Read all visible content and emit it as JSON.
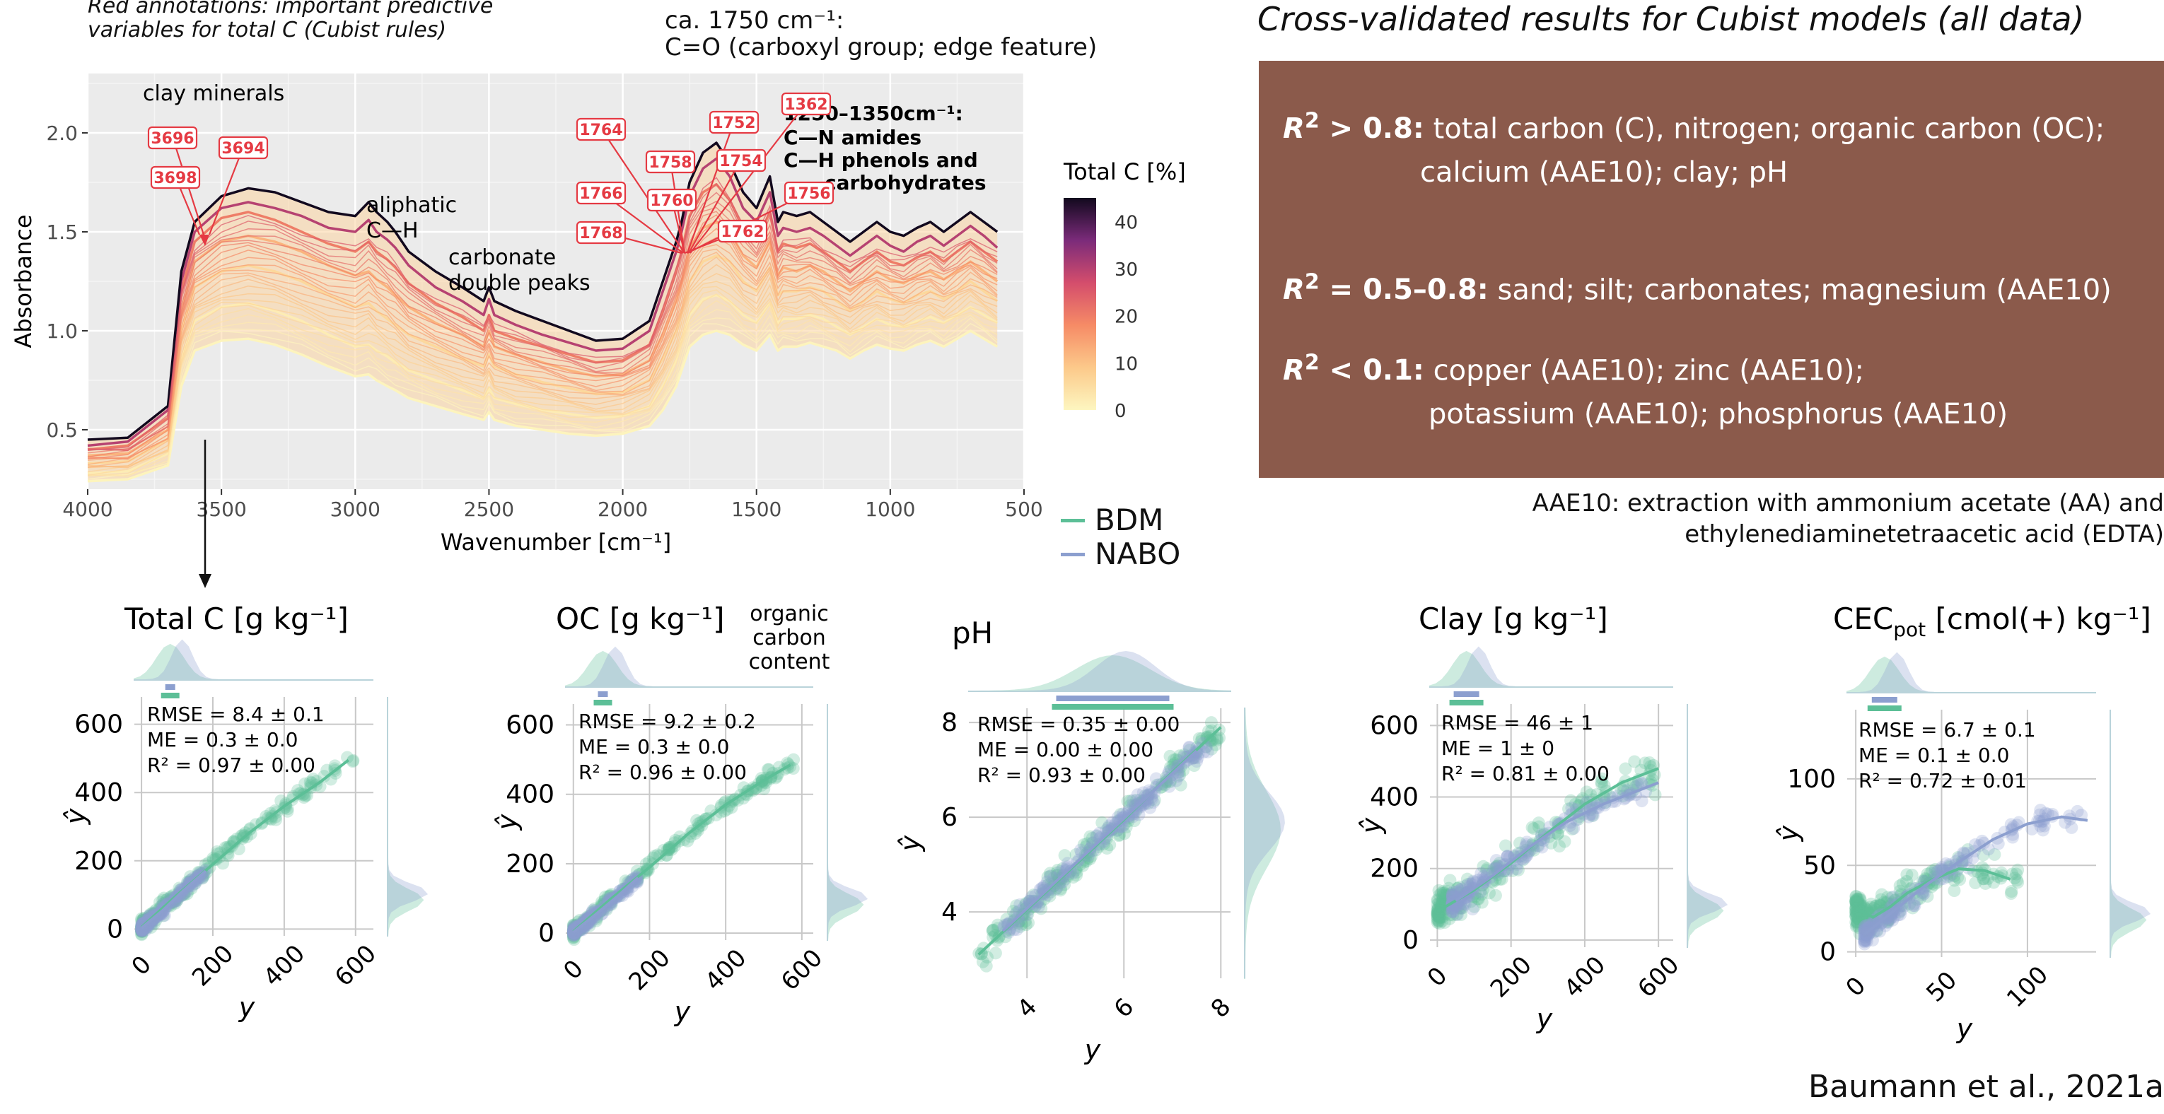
{
  "spectrum": {
    "note_line1": "Red annotations: important predictive",
    "note_line2": "variables for total C (Cubist rules)",
    "carboxyl_line1": "ca. 1750 cm⁻¹:",
    "carboxyl_line2": "C=O  (carboxyl group; edge feature)",
    "clay_label": "clay minerals",
    "aliphatic_line1": "aliphatic",
    "aliphatic_line2": "C—H",
    "carbonate_line1": "carbonate",
    "carbonate_line2": "double peaks",
    "amide_line1": "1250–1350cm⁻¹:",
    "amide_line2": "C—N amides",
    "amide_line3": "C—H phenols and",
    "amide_line4": "carbohydrates",
    "ylabel": "Absorbance",
    "xlabel": "Wavenumber [cm⁻¹]",
    "colorbar_title": "Total C [%]",
    "colorbar_ticks": [
      "40",
      "30",
      "20",
      "10",
      "0"
    ],
    "marker_labels": [
      "3696",
      "3694",
      "3698",
      "1764",
      "1758",
      "1766",
      "1760",
      "1768",
      "1752",
      "1754",
      "1362",
      "1756",
      "1762"
    ]
  },
  "cv": {
    "title": "Cross-validated results for Cubist models (all data)",
    "row1_label": "> 0.8:",
    "row1_text": "total carbon (C), nitrogen; organic carbon (OC);",
    "row1_text2": "calcium (AAE10); clay; pH",
    "row2_label": "= 0.5–0.8:",
    "row2_text": "sand; silt; carbonates; magnesium (AAE10)",
    "row3_label": "< 0.1:",
    "row3_text": "copper (AAE10); zinc (AAE10);",
    "row3_text2": "potassium (AAE10); phosphorus (AAE10)",
    "r": "R",
    "sq": "2",
    "aae_line1": "AAE10: extraction with ammonium acetate (AA) and",
    "aae_line2": "ethylenediaminetetraacetic acid (EDTA)"
  },
  "legend": {
    "bdm": "BDM",
    "nabo": "NABO",
    "bdm_color": "#5cbf97",
    "nabo_color": "#8c9fcf"
  },
  "citation": "Baumann et al., 2021a",
  "oc_note": [
    "organic",
    "carbon",
    "content"
  ],
  "chart_data": [
    {
      "type": "line",
      "title": "",
      "xlabel": "Wavenumber [cm⁻¹]",
      "ylabel": "Absorbance",
      "xlim": [
        4000,
        500
      ],
      "ylim": [
        0.2,
        2.3
      ],
      "x_ticks": [
        4000,
        3500,
        3000,
        2500,
        2000,
        1500,
        1000,
        500
      ],
      "y_ticks": [
        0.5,
        1.0,
        1.5,
        2.0
      ],
      "colorscale": {
        "name": "Total C [%]",
        "min": 0,
        "max": 45,
        "ticks": [
          0,
          10,
          20,
          30,
          40
        ]
      },
      "x": [
        4000,
        3850,
        3700,
        3650,
        3600,
        3500,
        3400,
        3300,
        3200,
        3100,
        3000,
        2950,
        2920,
        2880,
        2850,
        2800,
        2700,
        2600,
        2520,
        2500,
        2480,
        2400,
        2300,
        2200,
        2100,
        2000,
        1900,
        1850,
        1800,
        1780,
        1750,
        1700,
        1650,
        1600,
        1550,
        1500,
        1450,
        1420,
        1400,
        1350,
        1300,
        1250,
        1200,
        1150,
        1100,
        1050,
        1000,
        950,
        900,
        850,
        800,
        750,
        700,
        650,
        600
      ],
      "series": [
        {
          "c": 45,
          "values": [
            0.45,
            0.46,
            0.62,
            1.3,
            1.55,
            1.68,
            1.72,
            1.7,
            1.65,
            1.6,
            1.58,
            1.65,
            1.6,
            1.55,
            1.5,
            1.4,
            1.3,
            1.22,
            1.15,
            1.22,
            1.15,
            1.1,
            1.05,
            1.0,
            0.95,
            0.96,
            1.05,
            1.25,
            1.45,
            1.55,
            1.75,
            1.9,
            1.95,
            1.85,
            1.7,
            1.62,
            1.78,
            1.55,
            1.6,
            1.58,
            1.6,
            1.55,
            1.5,
            1.45,
            1.5,
            1.55,
            1.5,
            1.48,
            1.52,
            1.55,
            1.5,
            1.55,
            1.6,
            1.55,
            1.5
          ]
        },
        {
          "c": 30,
          "values": [
            0.42,
            0.44,
            0.6,
            1.25,
            1.5,
            1.62,
            1.65,
            1.62,
            1.58,
            1.52,
            1.5,
            1.56,
            1.5,
            1.46,
            1.42,
            1.33,
            1.22,
            1.15,
            1.08,
            1.16,
            1.08,
            1.03,
            0.98,
            0.94,
            0.9,
            0.91,
            1.0,
            1.2,
            1.4,
            1.5,
            1.68,
            1.82,
            1.87,
            1.78,
            1.62,
            1.55,
            1.7,
            1.48,
            1.52,
            1.5,
            1.52,
            1.48,
            1.43,
            1.38,
            1.43,
            1.48,
            1.43,
            1.4,
            1.45,
            1.48,
            1.43,
            1.48,
            1.53,
            1.48,
            1.42
          ]
        },
        {
          "c": 20,
          "values": [
            0.4,
            0.42,
            0.56,
            1.2,
            1.45,
            1.57,
            1.6,
            1.56,
            1.5,
            1.44,
            1.4,
            1.45,
            1.4,
            1.36,
            1.32,
            1.24,
            1.14,
            1.07,
            1.0,
            1.08,
            1.0,
            0.96,
            0.92,
            0.88,
            0.84,
            0.85,
            0.93,
            1.1,
            1.3,
            1.4,
            1.58,
            1.7,
            1.74,
            1.66,
            1.52,
            1.45,
            1.6,
            1.4,
            1.44,
            1.42,
            1.44,
            1.4,
            1.35,
            1.3,
            1.35,
            1.4,
            1.35,
            1.33,
            1.37,
            1.4,
            1.35,
            1.4,
            1.45,
            1.4,
            1.35
          ]
        },
        {
          "c": 12,
          "values": [
            0.37,
            0.38,
            0.5,
            1.1,
            1.35,
            1.45,
            1.48,
            1.45,
            1.4,
            1.33,
            1.28,
            1.3,
            1.26,
            1.22,
            1.18,
            1.12,
            1.04,
            0.98,
            0.92,
            1.0,
            0.92,
            0.88,
            0.84,
            0.8,
            0.77,
            0.78,
            0.85,
            0.98,
            1.15,
            1.25,
            1.42,
            1.52,
            1.55,
            1.5,
            1.38,
            1.32,
            1.45,
            1.28,
            1.32,
            1.3,
            1.33,
            1.3,
            1.25,
            1.2,
            1.25,
            1.3,
            1.26,
            1.24,
            1.28,
            1.3,
            1.26,
            1.3,
            1.35,
            1.3,
            1.25
          ]
        },
        {
          "c": 6,
          "values": [
            0.33,
            0.34,
            0.45,
            1.0,
            1.22,
            1.3,
            1.33,
            1.3,
            1.25,
            1.18,
            1.12,
            1.14,
            1.1,
            1.06,
            1.03,
            0.98,
            0.92,
            0.86,
            0.82,
            0.88,
            0.82,
            0.78,
            0.74,
            0.71,
            0.68,
            0.69,
            0.75,
            0.86,
            1.0,
            1.1,
            1.25,
            1.35,
            1.38,
            1.35,
            1.25,
            1.2,
            1.32,
            1.18,
            1.2,
            1.2,
            1.22,
            1.2,
            1.15,
            1.1,
            1.15,
            1.2,
            1.16,
            1.14,
            1.18,
            1.2,
            1.16,
            1.2,
            1.25,
            1.2,
            1.15
          ]
        },
        {
          "c": 2,
          "values": [
            0.28,
            0.29,
            0.38,
            0.85,
            1.05,
            1.12,
            1.14,
            1.1,
            1.05,
            0.98,
            0.92,
            0.93,
            0.9,
            0.87,
            0.84,
            0.8,
            0.75,
            0.7,
            0.66,
            0.71,
            0.66,
            0.63,
            0.6,
            0.58,
            0.56,
            0.57,
            0.62,
            0.72,
            0.85,
            0.95,
            1.08,
            1.16,
            1.18,
            1.15,
            1.08,
            1.04,
            1.14,
            1.04,
            1.06,
            1.06,
            1.08,
            1.06,
            1.02,
            0.98,
            1.02,
            1.06,
            1.03,
            1.02,
            1.05,
            1.07,
            1.04,
            1.08,
            1.12,
            1.08,
            1.04
          ]
        },
        {
          "c": 0.5,
          "values": [
            0.24,
            0.25,
            0.32,
            0.72,
            0.9,
            0.95,
            0.96,
            0.93,
            0.88,
            0.82,
            0.77,
            0.78,
            0.75,
            0.72,
            0.7,
            0.66,
            0.62,
            0.58,
            0.55,
            0.59,
            0.55,
            0.52,
            0.5,
            0.48,
            0.47,
            0.48,
            0.52,
            0.6,
            0.72,
            0.8,
            0.92,
            0.98,
            1.0,
            0.98,
            0.93,
            0.9,
            0.98,
            0.9,
            0.92,
            0.92,
            0.94,
            0.92,
            0.9,
            0.86,
            0.9,
            0.93,
            0.91,
            0.9,
            0.93,
            0.95,
            0.92,
            0.96,
            1.0,
            0.96,
            0.92
          ]
        }
      ]
    },
    {
      "type": "scatter",
      "title": "Total C [g kg⁻¹]",
      "xlabel": "y",
      "ylabel": "ŷ",
      "xlim": [
        -20,
        650
      ],
      "ylim": [
        -20,
        680
      ],
      "x_ticks": [
        0,
        200,
        400,
        600
      ],
      "y_ticks": [
        0,
        200,
        400,
        600
      ],
      "stats": [
        "RMSE = 8.4 ± 0.1",
        "ME = 0.3 ± 0.0",
        "R² = 0.97 ± 0.00"
      ],
      "trend_bdm": [
        [
          0,
          5
        ],
        [
          100,
          100
        ],
        [
          200,
          190
        ],
        [
          300,
          280
        ],
        [
          400,
          360
        ],
        [
          500,
          430
        ],
        [
          580,
          495
        ]
      ],
      "trend_nabo": [
        [
          0,
          3
        ],
        [
          60,
          55
        ],
        [
          120,
          115
        ],
        [
          180,
          170
        ]
      ],
      "bdm_range": [
        0,
        600
      ],
      "nabo_range": [
        0,
        180
      ]
    },
    {
      "type": "scatter",
      "title": "OC [g kg⁻¹]",
      "xlabel": "y",
      "ylabel": "ŷ",
      "xlim": [
        -20,
        630
      ],
      "ylim": [
        -20,
        660
      ],
      "x_ticks": [
        0,
        200,
        400,
        600
      ],
      "y_ticks": [
        0,
        200,
        400,
        600
      ],
      "stats": [
        "RMSE = 9.2 ± 0.2",
        "ME = 0.3 ± 0.0",
        "R² = 0.96 ± 0.00"
      ],
      "trend_bdm": [
        [
          0,
          5
        ],
        [
          100,
          100
        ],
        [
          200,
          190
        ],
        [
          300,
          285
        ],
        [
          400,
          370
        ],
        [
          500,
          440
        ],
        [
          570,
          485
        ]
      ],
      "trend_nabo": [
        [
          0,
          3
        ],
        [
          60,
          55
        ],
        [
          120,
          110
        ],
        [
          170,
          160
        ]
      ],
      "bdm_range": [
        0,
        580
      ],
      "nabo_range": [
        0,
        170
      ]
    },
    {
      "type": "scatter",
      "title": "pH",
      "xlabel": "y",
      "ylabel": "ŷ",
      "xlim": [
        2.8,
        8.2
      ],
      "ylim": [
        2.6,
        8.3
      ],
      "x_ticks": [
        4,
        6,
        8
      ],
      "y_ticks": [
        4,
        6,
        8
      ],
      "stats": [
        "RMSE = 0.35 ± 0.00",
        "ME = 0.00 ± 0.00",
        "R² = 0.93 ± 0.00"
      ],
      "trend_bdm": [
        [
          3,
          3.1
        ],
        [
          4,
          4.05
        ],
        [
          5,
          5.0
        ],
        [
          6,
          5.95
        ],
        [
          7,
          6.95
        ],
        [
          8,
          7.9
        ]
      ],
      "trend_nabo": [
        [
          3.5,
          3.6
        ],
        [
          4.5,
          4.55
        ],
        [
          5.5,
          5.5
        ],
        [
          6.5,
          6.45
        ],
        [
          7.5,
          7.4
        ]
      ],
      "bdm_range": [
        3,
        8
      ],
      "nabo_range": [
        3.5,
        7.8
      ]
    },
    {
      "type": "scatter",
      "title": "Clay [g kg⁻¹]",
      "xlabel": "y",
      "ylabel": "ŷ",
      "xlim": [
        -20,
        640
      ],
      "ylim": [
        -20,
        660
      ],
      "x_ticks": [
        0,
        200,
        400,
        600
      ],
      "y_ticks": [
        0,
        200,
        400,
        600
      ],
      "stats": [
        "RMSE = 46 ± 1",
        "ME = 1 ± 0",
        "R² = 0.81 ± 0.00"
      ],
      "trend_bdm": [
        [
          0,
          80
        ],
        [
          100,
          140
        ],
        [
          200,
          215
        ],
        [
          300,
          300
        ],
        [
          400,
          380
        ],
        [
          500,
          440
        ],
        [
          600,
          480
        ]
      ],
      "trend_nabo": [
        [
          50,
          110
        ],
        [
          150,
          180
        ],
        [
          250,
          260
        ],
        [
          350,
          330
        ],
        [
          450,
          380
        ],
        [
          600,
          440
        ]
      ],
      "bdm_range": [
        0,
        600
      ],
      "nabo_range": [
        40,
        600
      ]
    },
    {
      "type": "scatter",
      "title": "CEC",
      "title_sub": "pot",
      "title_rest": " [cmol(+) kg⁻¹]",
      "xlabel": "y",
      "ylabel": "ŷ",
      "xlim": [
        -5,
        140
      ],
      "ylim": [
        -3,
        140
      ],
      "x_ticks": [
        0,
        50,
        100
      ],
      "y_ticks": [
        0,
        50,
        100
      ],
      "stats": [
        "RMSE = 6.7 ± 0.1",
        "ME = 0.1 ± 0.0",
        "R² = 0.72 ± 0.01"
      ],
      "trend_bdm": [
        [
          0,
          25
        ],
        [
          10,
          20
        ],
        [
          20,
          26
        ],
        [
          30,
          34
        ],
        [
          45,
          42
        ],
        [
          60,
          48
        ],
        [
          75,
          47
        ],
        [
          90,
          42
        ]
      ],
      "trend_nabo": [
        [
          5,
          10
        ],
        [
          20,
          22
        ],
        [
          40,
          38
        ],
        [
          60,
          52
        ],
        [
          80,
          65
        ],
        [
          100,
          74
        ],
        [
          120,
          78
        ],
        [
          135,
          76
        ]
      ],
      "bdm_range": [
        0,
        95
      ],
      "nabo_range": [
        5,
        135
      ]
    }
  ]
}
